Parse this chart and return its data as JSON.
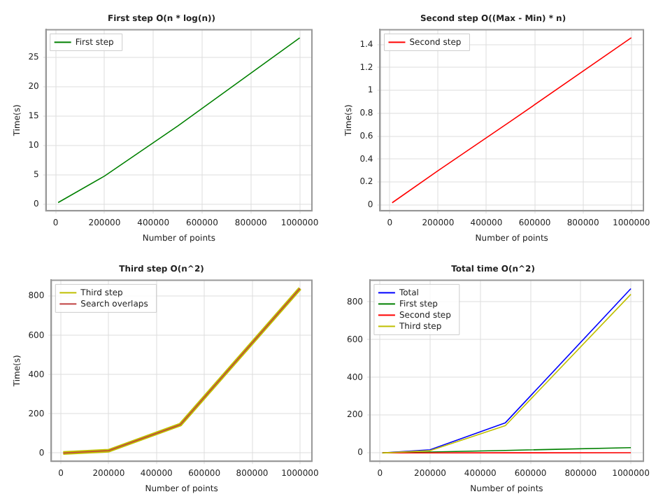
{
  "chart_data": [
    {
      "type": "line",
      "title": "First step O(n * log(n))",
      "xlabel": "Number of points",
      "ylabel": "Time(s)",
      "x": [
        10000,
        200000,
        500000,
        1000000
      ],
      "xlim": [
        -40000,
        1050000
      ],
      "xticks": [
        0,
        200000,
        400000,
        600000,
        800000,
        1000000
      ],
      "ylim": [
        -1.1,
        29.7
      ],
      "yticks": [
        0,
        5,
        10,
        15,
        20,
        25
      ],
      "grid": true,
      "legend": "top left",
      "series": [
        {
          "name": "First step",
          "color": "#008000",
          "values": [
            0.3,
            4.8,
            13.3,
            28.3
          ]
        }
      ]
    },
    {
      "type": "line",
      "title": "Second step O((Max - Min) * n)",
      "xlabel": "Number of points",
      "ylabel": "Time(s)",
      "x": [
        10000,
        200000,
        500000,
        1000000
      ],
      "xlim": [
        -40000,
        1050000
      ],
      "xticks": [
        0,
        200000,
        400000,
        600000,
        800000,
        1000000
      ],
      "ylim": [
        -0.05,
        1.53
      ],
      "yticks": [
        0.0,
        0.2,
        0.4,
        0.6,
        0.8,
        1.0,
        1.2,
        1.4
      ],
      "grid": true,
      "legend": "top left",
      "series": [
        {
          "name": "Second step",
          "color": "#ff0000",
          "values": [
            0.02,
            0.3,
            0.73,
            1.46
          ]
        }
      ]
    },
    {
      "type": "line",
      "title": "Third step O(n^2)",
      "xlabel": "Number of points",
      "ylabel": "Time(s)",
      "x": [
        10000,
        200000,
        500000,
        1000000
      ],
      "xlim": [
        -40000,
        1050000
      ],
      "xticks": [
        0,
        200000,
        400000,
        600000,
        800000,
        1000000
      ],
      "ylim": [
        -42,
        882
      ],
      "yticks": [
        0,
        200,
        400,
        600,
        800
      ],
      "grid": true,
      "legend": "top left",
      "series": [
        {
          "name": "Third step",
          "color": "#bfbf00",
          "values": [
            0,
            12,
            145,
            840
          ]
        },
        {
          "name": "Search overlaps",
          "color": "#c04040",
          "values": [
            0,
            12,
            145,
            840
          ]
        }
      ]
    },
    {
      "type": "line",
      "title": "Total time O(n^2)",
      "xlabel": "Number of points",
      "x": [
        10000,
        200000,
        500000,
        1000000
      ],
      "xlim": [
        -40000,
        1050000
      ],
      "xticks": [
        0,
        200000,
        400000,
        600000,
        800000,
        1000000
      ],
      "ylim": [
        -44,
        915
      ],
      "yticks": [
        0,
        200,
        400,
        600,
        800
      ],
      "grid": true,
      "legend": "top left",
      "series": [
        {
          "name": "Total",
          "color": "#0000ff",
          "values": [
            0.3,
            17,
            160,
            870
          ]
        },
        {
          "name": "First step",
          "color": "#008000",
          "values": [
            0.3,
            4.8,
            13.3,
            28.3
          ]
        },
        {
          "name": "Second step",
          "color": "#ff0000",
          "values": [
            0.02,
            0.3,
            0.73,
            1.46
          ]
        },
        {
          "name": "Third step",
          "color": "#bfbf00",
          "values": [
            0,
            12,
            145,
            840
          ]
        }
      ]
    }
  ]
}
